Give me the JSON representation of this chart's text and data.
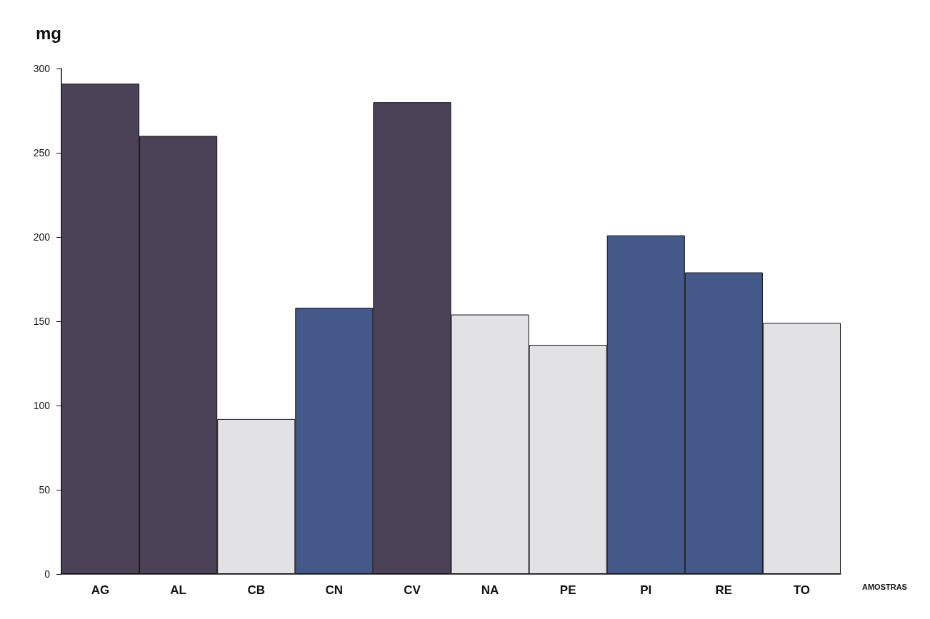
{
  "chart_data": {
    "type": "bar",
    "ylabel": "mg",
    "xlabel": "AMOSTRAS",
    "categories": [
      "AG",
      "AL",
      "CB",
      "CN",
      "CV",
      "NA",
      "PE",
      "PI",
      "RE",
      "TO"
    ],
    "values": [
      291,
      260,
      92,
      158,
      280,
      154,
      136,
      201,
      179,
      149
    ],
    "colors": [
      "#4b4257",
      "#4b4257",
      "#e2e2e4",
      "#44598a",
      "#4b4257",
      "#e2e2e4",
      "#e2e2e4",
      "#44598a",
      "#44598a",
      "#e2e2e4"
    ],
    "ylim": [
      0,
      300
    ],
    "yticks": [
      0,
      50,
      100,
      150,
      200,
      250,
      300
    ],
    "grid": false
  }
}
